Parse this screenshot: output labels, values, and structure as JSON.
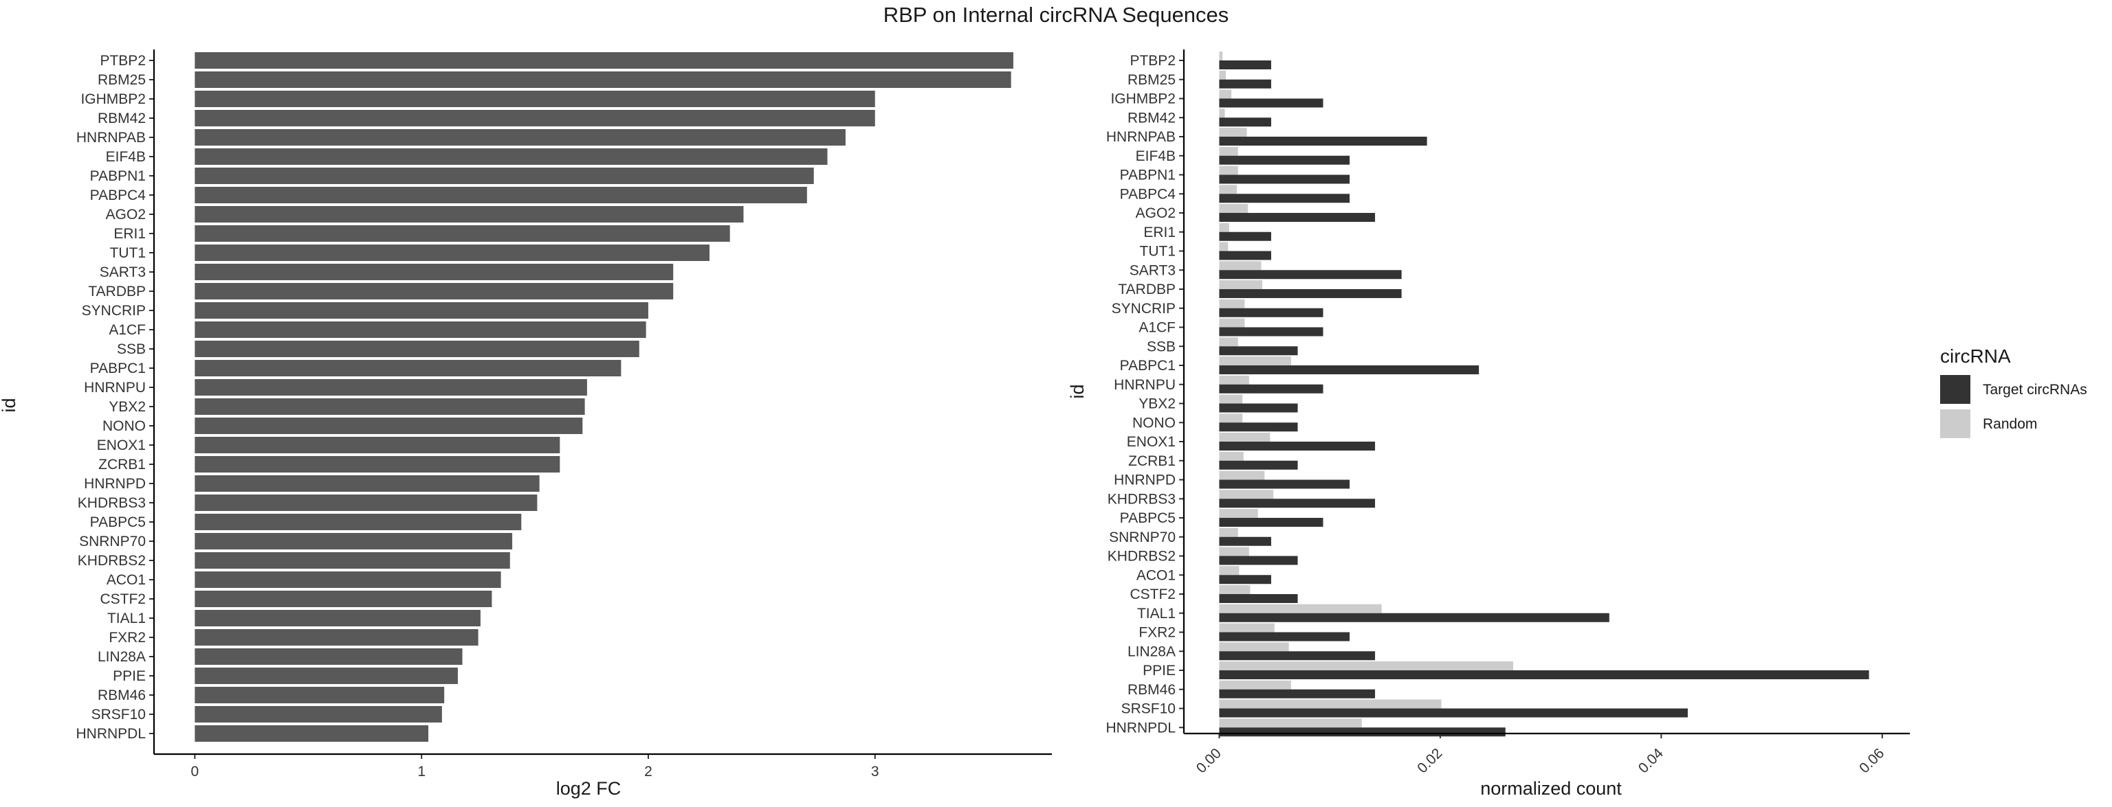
{
  "title": "RBP on Internal circRNA Sequences",
  "chart_data": [
    {
      "type": "bar",
      "orientation": "horizontal",
      "xlabel": "log2 FC",
      "ylabel": "id",
      "xlim": [
        -0.18,
        3.78
      ],
      "xticks": [
        "0",
        "1",
        "2",
        "3"
      ],
      "grid": false,
      "bar_color": "#595959",
      "categories": [
        "PTBP2",
        "RBM25",
        "IGHMBP2",
        "RBM42",
        "HNRNPAB",
        "EIF4B",
        "PABPN1",
        "PABPC4",
        "AGO2",
        "ERI1",
        "TUT1",
        "SART3",
        "TARDBP",
        "SYNCRIP",
        "A1CF",
        "SSB",
        "PABPC1",
        "HNRNPU",
        "YBX2",
        "NONO",
        "ENOX1",
        "ZCRB1",
        "HNRNPD",
        "KHDRBS3",
        "PABPC5",
        "SNRNP70",
        "KHDRBS2",
        "ACO1",
        "CSTF2",
        "TIAL1",
        "FXR2",
        "LIN28A",
        "PPIE",
        "RBM46",
        "SRSF10",
        "HNRNPDL"
      ],
      "values": [
        3.61,
        3.6,
        3.0,
        3.0,
        2.87,
        2.79,
        2.73,
        2.7,
        2.42,
        2.36,
        2.27,
        2.11,
        2.11,
        2.0,
        1.99,
        1.96,
        1.88,
        1.73,
        1.72,
        1.71,
        1.61,
        1.61,
        1.52,
        1.51,
        1.44,
        1.4,
        1.39,
        1.35,
        1.31,
        1.26,
        1.25,
        1.18,
        1.16,
        1.1,
        1.09,
        1.03
      ]
    },
    {
      "type": "bar",
      "orientation": "horizontal",
      "xlabel": "normalized count",
      "ylabel": "id",
      "xlim": [
        -0.0032,
        0.0625
      ],
      "xticks": [
        "0.00",
        "0.02",
        "0.04",
        "0.06"
      ],
      "grid": false,
      "legend": {
        "title": "circRNA",
        "position": "right"
      },
      "categories": [
        "PTBP2",
        "RBM25",
        "IGHMBP2",
        "RBM42",
        "HNRNPAB",
        "EIF4B",
        "PABPN1",
        "PABPC4",
        "AGO2",
        "ERI1",
        "TUT1",
        "SART3",
        "TARDBP",
        "SYNCRIP",
        "A1CF",
        "SSB",
        "PABPC1",
        "HNRNPU",
        "YBX2",
        "NONO",
        "ENOX1",
        "ZCRB1",
        "HNRNPD",
        "KHDRBS3",
        "PABPC5",
        "SNRNP70",
        "KHDRBS2",
        "ACO1",
        "CSTF2",
        "TIAL1",
        "FXR2",
        "LIN28A",
        "PPIE",
        "RBM46",
        "SRSF10",
        "HNRNPDL"
      ],
      "series": [
        {
          "name": "Target circRNAs",
          "color": "#333333",
          "values": [
            0.0047,
            0.0047,
            0.0094,
            0.0047,
            0.0188,
            0.0118,
            0.0118,
            0.0118,
            0.0141,
            0.0047,
            0.0047,
            0.0165,
            0.0165,
            0.0094,
            0.0094,
            0.0071,
            0.0235,
            0.0094,
            0.0071,
            0.0071,
            0.0141,
            0.0071,
            0.0118,
            0.0141,
            0.0094,
            0.0047,
            0.0071,
            0.0047,
            0.0071,
            0.0353,
            0.0118,
            0.0141,
            0.0588,
            0.0141,
            0.0424,
            0.0259
          ]
        },
        {
          "name": "Random",
          "color": "#cccccc",
          "values": [
            0.0003,
            0.0006,
            0.0011,
            0.0005,
            0.0025,
            0.0017,
            0.0017,
            0.0016,
            0.0026,
            0.0009,
            0.0008,
            0.0038,
            0.0039,
            0.0023,
            0.0023,
            0.0017,
            0.0065,
            0.0027,
            0.0021,
            0.0021,
            0.0046,
            0.0022,
            0.0041,
            0.0049,
            0.0035,
            0.0017,
            0.0027,
            0.0018,
            0.0028,
            0.0147,
            0.005,
            0.0063,
            0.0266,
            0.0065,
            0.0201,
            0.0129
          ]
        }
      ]
    }
  ]
}
